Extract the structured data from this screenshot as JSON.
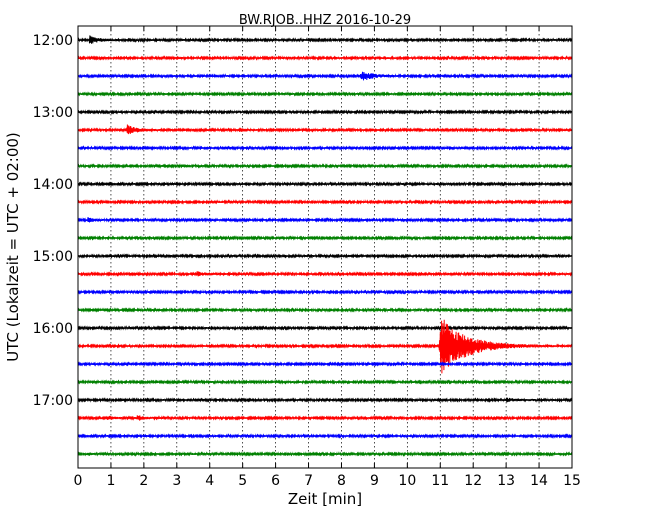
{
  "chart_data": {
    "type": "line",
    "title": "BW.RJOB..HHZ 2016-10-29",
    "xlabel": "Zeit  [min]",
    "ylabel": "UTC (Lokalzeit = UTC + 02:00)",
    "xlim": [
      0,
      15
    ],
    "x_ticks": [
      "0",
      "1",
      "2",
      "3",
      "4",
      "5",
      "6",
      "7",
      "8",
      "9",
      "10",
      "11",
      "12",
      "13",
      "14",
      "15"
    ],
    "y_ticks": [
      "12:00",
      "13:00",
      "14:00",
      "15:00",
      "16:00",
      "17:00"
    ],
    "grid": "vertical dotted",
    "colors": [
      "#000000",
      "#ff0000",
      "#0000ff",
      "#008000"
    ],
    "traces": [
      {
        "time": "12:00",
        "color": "#000000",
        "events": [
          {
            "t": 0.35,
            "amp": 1.0,
            "dur": 0.8
          }
        ]
      },
      {
        "time": "12:15",
        "color": "#ff0000",
        "events": [
          {
            "t": 3.0,
            "amp": 0.35,
            "dur": 0.2
          }
        ]
      },
      {
        "time": "12:30",
        "color": "#0000ff",
        "events": [
          {
            "t": 8.6,
            "amp": 1.4,
            "dur": 0.9
          }
        ]
      },
      {
        "time": "12:45",
        "color": "#008000",
        "events": []
      },
      {
        "time": "13:00",
        "color": "#000000",
        "events": [
          {
            "t": 4.8,
            "amp": 0.2,
            "dur": 0.3
          }
        ]
      },
      {
        "time": "13:15",
        "color": "#ff0000",
        "events": [
          {
            "t": 1.5,
            "amp": 1.2,
            "dur": 0.8
          },
          {
            "t": 4.9,
            "amp": 0.4,
            "dur": 0.6
          }
        ]
      },
      {
        "time": "13:30",
        "color": "#0000ff",
        "events": [
          {
            "t": 13.9,
            "amp": 0.2,
            "dur": 0.3
          }
        ]
      },
      {
        "time": "13:45",
        "color": "#008000",
        "events": [
          {
            "t": 3.2,
            "amp": 0.3,
            "dur": 0.5
          }
        ]
      },
      {
        "time": "14:00",
        "color": "#000000",
        "events": [
          {
            "t": 10.7,
            "amp": 0.15,
            "dur": 0.2
          }
        ]
      },
      {
        "time": "14:15",
        "color": "#ff0000",
        "events": []
      },
      {
        "time": "14:30",
        "color": "#0000ff",
        "events": [
          {
            "t": 0.3,
            "amp": 0.55,
            "dur": 0.5
          }
        ]
      },
      {
        "time": "14:45",
        "color": "#008000",
        "events": []
      },
      {
        "time": "15:00",
        "color": "#000000",
        "events": [
          {
            "t": 8.2,
            "amp": 0.15,
            "dur": 0.2
          }
        ]
      },
      {
        "time": "15:15",
        "color": "#ff0000",
        "events": [
          {
            "t": 3.6,
            "amp": 0.55,
            "dur": 0.8
          },
          {
            "t": 14.6,
            "amp": 0.4,
            "dur": 0.1
          }
        ]
      },
      {
        "time": "15:30",
        "color": "#0000ff",
        "events": []
      },
      {
        "time": "15:45",
        "color": "#008000",
        "events": []
      },
      {
        "time": "16:00",
        "color": "#000000",
        "events": [
          {
            "t": 7.6,
            "amp": 0.2,
            "dur": 0.1
          }
        ]
      },
      {
        "time": "16:15",
        "color": "#ff0000",
        "events": [
          {
            "t": 3.6,
            "amp": 0.3,
            "dur": 0.2
          },
          {
            "t": 11.0,
            "amp": 7.5,
            "dur": 2.2
          }
        ]
      },
      {
        "time": "16:30",
        "color": "#0000ff",
        "events": [
          {
            "t": 14.1,
            "amp": 0.55,
            "dur": 0.1
          }
        ]
      },
      {
        "time": "16:45",
        "color": "#008000",
        "events": [
          {
            "t": 4.0,
            "amp": 0.15,
            "dur": 0.1
          }
        ]
      },
      {
        "time": "17:00",
        "color": "#000000",
        "events": [
          {
            "t": 13.0,
            "amp": 0.4,
            "dur": 1.1
          }
        ]
      },
      {
        "time": "17:15",
        "color": "#ff0000",
        "events": [
          {
            "t": 0.9,
            "amp": 0.6,
            "dur": 0.4
          },
          {
            "t": 1.8,
            "amp": 0.6,
            "dur": 0.6
          }
        ]
      },
      {
        "time": "17:30",
        "color": "#0000ff",
        "events": []
      },
      {
        "time": "17:45",
        "color": "#008000",
        "events": [
          {
            "t": 0.3,
            "amp": 0.3,
            "dur": 0.4
          }
        ]
      }
    ]
  }
}
